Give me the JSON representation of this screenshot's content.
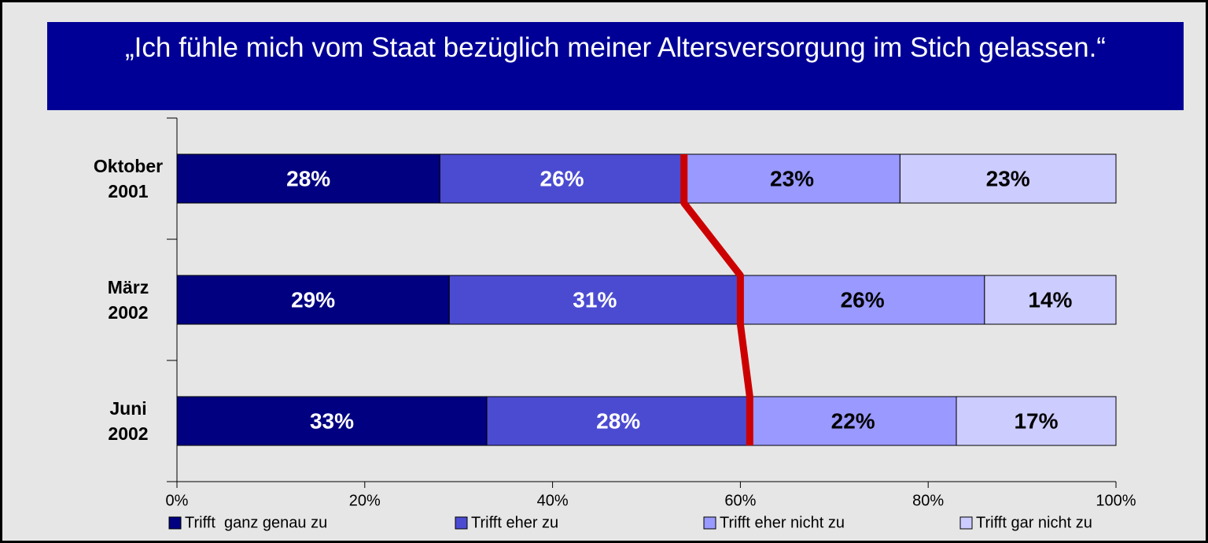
{
  "chart_data": {
    "type": "stacked_barh",
    "title": "„Ich fühle mich vom Staat bezüglich meiner Altersversorgung im Stich gelassen.“",
    "categories": [
      "Oktober 2001",
      "März 2002",
      "Juni 2002"
    ],
    "series": [
      {
        "name": "Trifft  ganz genau zu",
        "color": "#000080",
        "values": [
          28,
          29,
          33
        ],
        "value_labels": [
          "28%",
          "29%",
          "33%"
        ]
      },
      {
        "name": "Trifft eher zu",
        "color": "#4b4bd2",
        "values": [
          26,
          31,
          28
        ],
        "value_labels": [
          "26%",
          "31%",
          "28%"
        ]
      },
      {
        "name": "Trifft eher nicht zu",
        "color": "#9999ff",
        "values": [
          23,
          26,
          22
        ],
        "value_labels": [
          "23%",
          "26%",
          "22%"
        ]
      },
      {
        "name": "Trifft gar nicht zu",
        "color": "#ccccff",
        "values": [
          23,
          14,
          17
        ],
        "value_labels": [
          "23%",
          "14%",
          "17%"
        ]
      }
    ],
    "xlim": [
      0,
      100
    ],
    "xticks": [
      {
        "value": 0,
        "label": "0%"
      },
      {
        "value": 20,
        "label": "20%"
      },
      {
        "value": 40,
        "label": "40%"
      },
      {
        "value": 60,
        "label": "60%"
      },
      {
        "value": 80,
        "label": "80%"
      },
      {
        "value": 100,
        "label": "100%"
      }
    ],
    "legend": "bottom"
  }
}
